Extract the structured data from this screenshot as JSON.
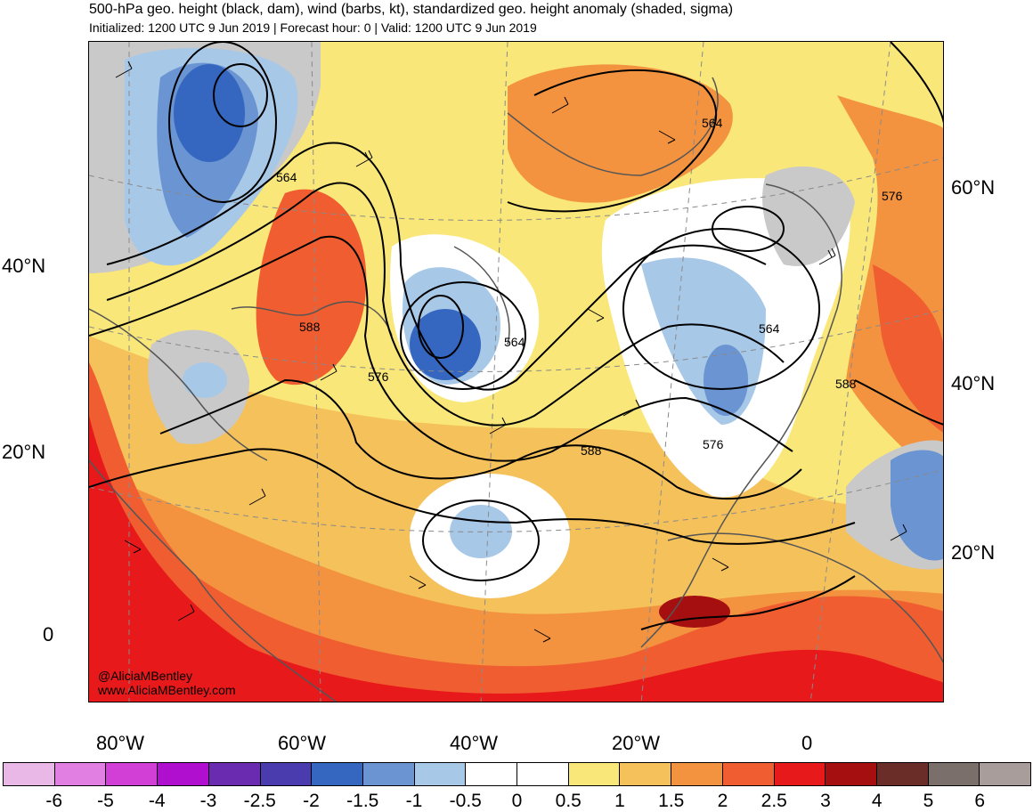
{
  "header": {
    "title": "500-hPa geo. height (black, dam), wind (barbs, kt), standardized geo. height anomaly (shaded, sigma)",
    "subtitle": "Initialized: 1200 UTC 9 Jun 2019 | Forecast hour: 0 | Valid: 1200 UTC 9 Jun 2019"
  },
  "map": {
    "lat_labels_left": [
      "40°N",
      "20°N",
      "0"
    ],
    "lat_labels_right": [
      "60°N",
      "40°N",
      "20°N"
    ],
    "lon_labels": [
      "80°W",
      "60°W",
      "40°W",
      "20°W",
      "0"
    ],
    "contour_labels": [
      "564",
      "588",
      "576",
      "564",
      "564",
      "576",
      "588",
      "564",
      "588",
      "576"
    ],
    "watermark_handle": "@AliciaMBentley",
    "watermark_url": "www.AliciaMBentley.com"
  },
  "colorbar": {
    "labels": [
      "-6",
      "-5",
      "-4",
      "-3",
      "-2.5",
      "-2",
      "-1.5",
      "-1",
      "-0.5",
      "0",
      "0.5",
      "1",
      "1.5",
      "2",
      "2.5",
      "3",
      "4",
      "5",
      "6"
    ],
    "colors": [
      "#e9b8e6",
      "#e27fe2",
      "#d23fd6",
      "#b10fd0",
      "#6a2bb1",
      "#4a3cae",
      "#3566c0",
      "#6a94d2",
      "#a8c8e8",
      "#ffffff",
      "#ffffff",
      "#f9e779",
      "#f5c15b",
      "#f3923f",
      "#f05d30",
      "#e8191b",
      "#a50f10",
      "#6b2d28",
      "#7b6f6c",
      "#a89d9b"
    ]
  }
}
